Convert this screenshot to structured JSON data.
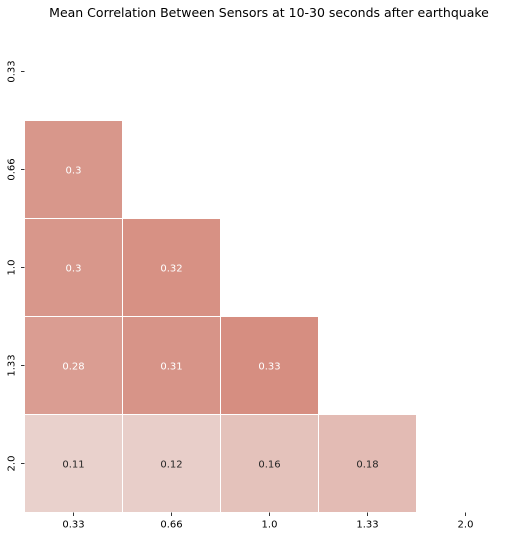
{
  "chart_data": {
    "type": "heatmap",
    "title": "Mean Correlation Between Sensors at 10-30 seconds after earthquake",
    "xlabel": "",
    "ylabel": "",
    "x_categories": [
      "0.33",
      "0.66",
      "1.0",
      "1.33",
      "2.0"
    ],
    "y_categories": [
      "0.33",
      "0.66",
      "1.0",
      "1.33",
      "2.0"
    ],
    "mask": "upper-triangle-including-diagonal",
    "values": [
      [
        null,
        null,
        null,
        null,
        null
      ],
      [
        0.3,
        null,
        null,
        null,
        null
      ],
      [
        0.3,
        0.32,
        null,
        null,
        null
      ],
      [
        0.28,
        0.31,
        0.33,
        null,
        null
      ],
      [
        0.11,
        0.12,
        0.16,
        0.18,
        null
      ]
    ],
    "cell_labels": [
      [
        null,
        null,
        null,
        null,
        null
      ],
      [
        "0.3",
        null,
        null,
        null,
        null
      ],
      [
        "0.3",
        "0.32",
        null,
        null,
        null
      ],
      [
        "0.28",
        "0.31",
        "0.33",
        null,
        null
      ],
      [
        "0.11",
        "0.12",
        "0.16",
        "0.18",
        null
      ]
    ],
    "colors": {
      "high": "#d4887a",
      "low": "#f2f2f2",
      "cell_border": "#ffffff",
      "label_light": "#ffffff",
      "label_dark": "#262626"
    },
    "color_scale": {
      "vmin": 0.0,
      "vmax": 0.35
    },
    "grid": false,
    "legend": "none"
  }
}
